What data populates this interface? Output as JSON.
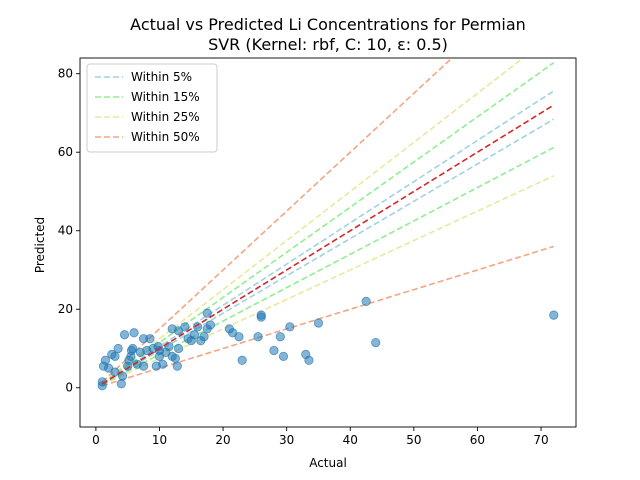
{
  "chart_data": {
    "type": "scatter",
    "title": "Actual vs Predicted Li Concentrations for Permian",
    "subtitle": "SVR (Kernel: rbf, C: 10, ε: 0.5)",
    "xlabel": "Actual",
    "ylabel": "Predicted",
    "xlim": [
      -2.5,
      75.5
    ],
    "ylim": [
      -10,
      84
    ],
    "xticks": [
      0,
      10,
      20,
      30,
      40,
      50,
      60,
      70
    ],
    "yticks": [
      0,
      20,
      40,
      60,
      80
    ],
    "grid": false,
    "legend_position": "top-left",
    "point_color": "#1f77b4",
    "identity_line": {
      "x": [
        1,
        72
      ],
      "color": "#d62728"
    },
    "bands": [
      {
        "label": "Within 5%",
        "fraction": 0.05,
        "color": "#9fd3e0"
      },
      {
        "label": "Within 15%",
        "fraction": 0.15,
        "color": "#90ee90"
      },
      {
        "label": "Within 25%",
        "fraction": 0.25,
        "color": "#e8e8a0"
      },
      {
        "label": "Within 50%",
        "fraction": 0.5,
        "color": "#f4a582"
      }
    ],
    "points": [
      [
        1,
        0.5
      ],
      [
        1,
        1.5
      ],
      [
        1.2,
        5.5
      ],
      [
        1.5,
        7
      ],
      [
        2,
        5
      ],
      [
        2.5,
        8.5
      ],
      [
        3,
        4
      ],
      [
        3,
        8
      ],
      [
        3.5,
        10
      ],
      [
        4,
        1
      ],
      [
        4.2,
        3
      ],
      [
        4.5,
        13.5
      ],
      [
        5,
        5.5
      ],
      [
        5.2,
        7
      ],
      [
        5.5,
        8
      ],
      [
        5.6,
        9.5
      ],
      [
        5.8,
        10
      ],
      [
        6,
        14
      ],
      [
        6.5,
        6
      ],
      [
        7,
        9
      ],
      [
        7.5,
        12.5
      ],
      [
        7.5,
        5.5
      ],
      [
        8,
        9.5
      ],
      [
        8.5,
        12.5
      ],
      [
        9,
        10
      ],
      [
        9.5,
        5.5
      ],
      [
        9.8,
        10.5
      ],
      [
        10,
        8
      ],
      [
        10,
        9.5
      ],
      [
        10.5,
        6
      ],
      [
        11,
        9
      ],
      [
        11.5,
        10.5
      ],
      [
        12,
        8
      ],
      [
        12,
        15
      ],
      [
        12.5,
        7.5
      ],
      [
        12.8,
        5.5
      ],
      [
        13,
        14.5
      ],
      [
        13,
        10
      ],
      [
        14,
        15.5
      ],
      [
        14.5,
        12.5
      ],
      [
        15,
        12
      ],
      [
        15.5,
        13.5
      ],
      [
        16,
        15.5
      ],
      [
        16.5,
        12
      ],
      [
        17,
        13
      ],
      [
        17.5,
        15
      ],
      [
        17.5,
        19
      ],
      [
        18,
        16
      ],
      [
        21,
        15
      ],
      [
        21.5,
        14
      ],
      [
        22.5,
        13
      ],
      [
        23,
        7
      ],
      [
        25.5,
        13
      ],
      [
        26,
        18.5
      ],
      [
        26,
        18
      ],
      [
        28,
        9.5
      ],
      [
        29,
        13
      ],
      [
        29.5,
        8
      ],
      [
        30.5,
        15.5
      ],
      [
        33,
        8.5
      ],
      [
        33.5,
        7
      ],
      [
        35,
        16.5
      ],
      [
        42.5,
        22
      ],
      [
        44,
        11.5
      ],
      [
        72,
        18.5
      ]
    ]
  }
}
